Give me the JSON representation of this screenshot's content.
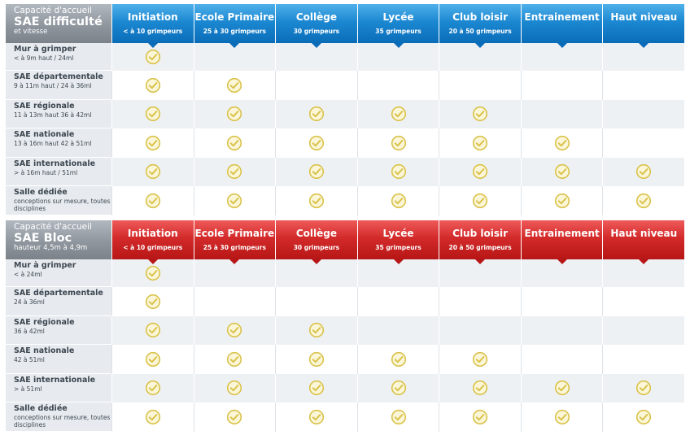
{
  "sections": [
    {
      "theme": "blue",
      "corner": {
        "line1": "Capacité d'accueil",
        "line2": "SAE difficulté",
        "line3": "et vitesse"
      },
      "columns": [
        {
          "title": "Initiation",
          "sub": "< à 10 grimpeurs"
        },
        {
          "title": "Ecole Primaire",
          "sub": "25 à 30 grimpeurs"
        },
        {
          "title": "Collège",
          "sub": "30 grimpeurs"
        },
        {
          "title": "Lycée",
          "sub": "35 grimpeurs"
        },
        {
          "title": "Club loisir",
          "sub": "20 à 50 grimpeurs"
        },
        {
          "title": "Entrainement",
          "sub": ""
        },
        {
          "title": "Haut niveau",
          "sub": ""
        }
      ],
      "rows": [
        {
          "label": "Mur à grimper",
          "sub": "< à 9m haut / 24ml",
          "checks": [
            1,
            0,
            0,
            0,
            0,
            0,
            0
          ]
        },
        {
          "label": "SAE départementale",
          "sub": "9 à 11m haut / 24 à 36ml",
          "checks": [
            1,
            1,
            0,
            0,
            0,
            0,
            0
          ]
        },
        {
          "label": "SAE régionale",
          "sub": "11 à 13m haut 36 à 42ml",
          "checks": [
            1,
            1,
            1,
            1,
            1,
            0,
            0
          ]
        },
        {
          "label": "SAE nationale",
          "sub": "13 à 16m haut 42 à 51ml",
          "checks": [
            1,
            1,
            1,
            1,
            1,
            1,
            0
          ]
        },
        {
          "label": "SAE internationale",
          "sub": "> à 16m haut / 51ml",
          "checks": [
            1,
            1,
            1,
            1,
            1,
            1,
            1
          ]
        },
        {
          "label": "Salle dédiée",
          "sub": "conceptions sur mesure, toutes disciplines",
          "checks": [
            1,
            1,
            1,
            1,
            1,
            1,
            1
          ]
        }
      ]
    },
    {
      "theme": "red",
      "corner": {
        "line1": "Capacité d'accueil",
        "line2": "SAE Bloc",
        "line3": "hauteur 4,5m à 4,9m"
      },
      "columns": [
        {
          "title": "Initiation",
          "sub": "< à 10 grimpeurs"
        },
        {
          "title": "Ecole Primaire",
          "sub": "25 à 30 grimpeurs"
        },
        {
          "title": "Collège",
          "sub": "30 grimpeurs"
        },
        {
          "title": "Lycée",
          "sub": "35 grimpeurs"
        },
        {
          "title": "Club loisir",
          "sub": "20 à 50 grimpeurs"
        },
        {
          "title": "Entrainement",
          "sub": ""
        },
        {
          "title": "Haut niveau",
          "sub": ""
        }
      ],
      "rows": [
        {
          "label": "Mur à grimper",
          "sub": "< à 24ml",
          "checks": [
            1,
            0,
            0,
            0,
            0,
            0,
            0
          ]
        },
        {
          "label": "SAE départementale",
          "sub": "24 à 36ml",
          "checks": [
            1,
            0,
            0,
            0,
            0,
            0,
            0
          ]
        },
        {
          "label": "SAE régionale",
          "sub": "36 à 42ml",
          "checks": [
            1,
            1,
            1,
            0,
            0,
            0,
            0
          ]
        },
        {
          "label": "SAE nationale",
          "sub": "42 à 51ml",
          "checks": [
            1,
            1,
            1,
            1,
            1,
            0,
            0
          ]
        },
        {
          "label": "SAE internationale",
          "sub": "> à 51ml",
          "checks": [
            1,
            1,
            1,
            1,
            1,
            1,
            1
          ]
        },
        {
          "label": "Salle dédiée",
          "sub": "conceptions sur mesure, toutes disciplines",
          "checks": [
            1,
            1,
            1,
            1,
            1,
            1,
            1
          ]
        }
      ]
    }
  ],
  "colors": {
    "check_ring": "#d9c24a",
    "check_fill": "#fbf6d8",
    "check_mark": "#d9c24a"
  },
  "icon": "check-circle-icon"
}
